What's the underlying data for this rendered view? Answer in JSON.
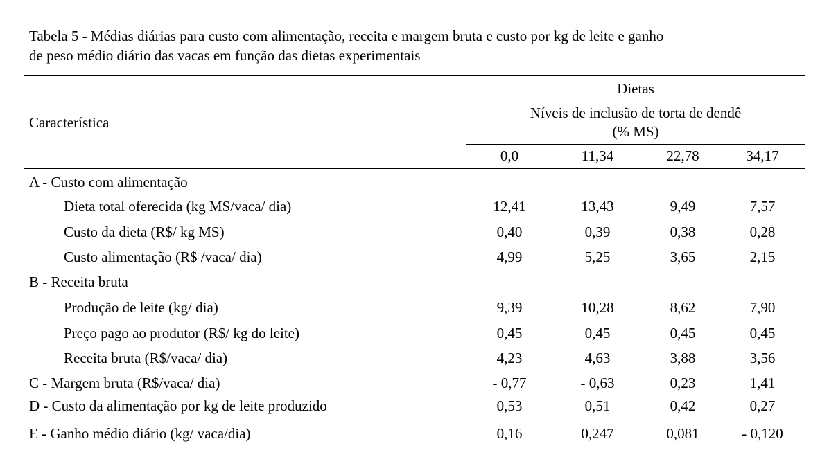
{
  "caption": {
    "line1": "Tabela 5 - Médias diárias para custo com alimentação, receita e margem bruta e custo por kg de leite e ganho",
    "line2": "de peso médio diário das vacas em função das dietas experimentais"
  },
  "header": {
    "characteristic": "Característica",
    "group": "Dietas",
    "subgroup_line1": "Níveis de inclusão de torta de dendê",
    "subgroup_line2": "(% MS)",
    "columns": [
      "0,0",
      "11,34",
      "22,78",
      "34,17"
    ]
  },
  "rows": [
    {
      "label": "A - Custo com alimentação",
      "indent": false,
      "values": []
    },
    {
      "label": "Dieta total oferecida (kg MS/vaca/ dia)",
      "indent": true,
      "values": [
        "12,41",
        "13,43",
        "9,49",
        "7,57"
      ]
    },
    {
      "label": "Custo da dieta (R$/ kg MS)",
      "indent": true,
      "values": [
        "0,40",
        "0,39",
        "0,38",
        "0,28"
      ]
    },
    {
      "label": "Custo alimentação (R$ /vaca/ dia)",
      "indent": true,
      "values": [
        "4,99",
        "5,25",
        "3,65",
        "2,15"
      ]
    },
    {
      "label": "B - Receita bruta",
      "indent": false,
      "values": []
    },
    {
      "label": "Produção de leite (kg/ dia)",
      "indent": true,
      "values": [
        "9,39",
        "10,28",
        "8,62",
        "7,90"
      ]
    },
    {
      "label": "Preço pago ao produtor (R$/ kg do leite)",
      "indent": true,
      "values": [
        "0,45",
        "0,45",
        "0,45",
        "0,45"
      ]
    },
    {
      "label": "Receita bruta (R$/vaca/ dia)",
      "indent": true,
      "values": [
        "4,23",
        "4,63",
        "3,88",
        "3,56"
      ]
    },
    {
      "label": "C - Margem bruta (R$/vaca/ dia)",
      "indent": false,
      "values": [
        "- 0,77",
        "- 0,63",
        "0,23",
        "1,41"
      ]
    },
    {
      "label": "D - Custo da alimentação por kg de leite produzido",
      "indent": false,
      "values": [
        "0,53",
        "0,51",
        "0,42",
        "0,27"
      ]
    },
    {
      "label": "E - Ganho médio diário (kg/ vaca/dia)",
      "indent": false,
      "values": [
        "0,16",
        "0,247",
        "0,081",
        "- 0,120"
      ]
    }
  ]
}
